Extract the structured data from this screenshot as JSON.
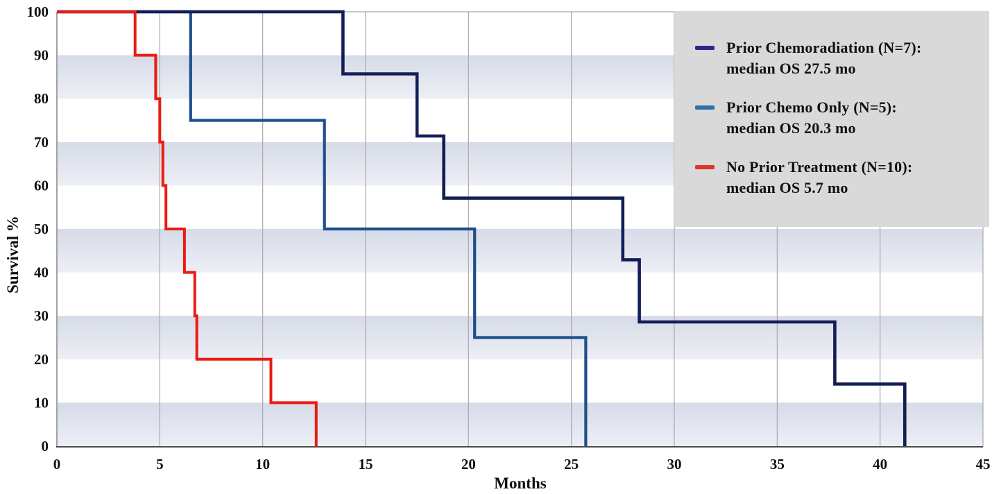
{
  "chart_data": {
    "type": "line",
    "subtype": "kaplan_meier_step",
    "title": "",
    "xlabel": "Months",
    "ylabel": "Survival %",
    "xlim": [
      0,
      45
    ],
    "ylim": [
      0,
      100
    ],
    "x_ticks": [
      0,
      5,
      10,
      15,
      20,
      25,
      30,
      35,
      40,
      45
    ],
    "y_ticks": [
      0,
      10,
      20,
      30,
      40,
      50,
      60,
      70,
      80,
      90,
      100
    ],
    "grid": {
      "vertical_gridlines_at_months": [
        5,
        10,
        15,
        20,
        25,
        30,
        35,
        40,
        45
      ],
      "shaded_horizontal_bands_pct": [
        [
          0,
          10
        ],
        [
          20,
          30
        ],
        [
          40,
          50
        ],
        [
          60,
          70
        ],
        [
          80,
          90
        ]
      ]
    },
    "legend_position": "top-right",
    "series": [
      {
        "name": "Prior Chemoradiation",
        "n": 7,
        "median_os_mo": 27.5,
        "legend_line1": "Prior Chemoradiation (N=7):",
        "legend_line2": "median OS 27.5 mo",
        "color": "#131e55",
        "swatch_color": "#28288f",
        "points": [
          [
            0,
            100
          ],
          [
            13.9,
            100
          ],
          [
            13.9,
            85.7
          ],
          [
            17.5,
            85.7
          ],
          [
            17.5,
            71.4
          ],
          [
            18.8,
            71.4
          ],
          [
            18.8,
            57.1
          ],
          [
            27.5,
            57.1
          ],
          [
            27.5,
            42.9
          ],
          [
            28.3,
            42.9
          ],
          [
            28.3,
            28.6
          ],
          [
            37.8,
            28.6
          ],
          [
            37.8,
            14.3
          ],
          [
            41.2,
            14.3
          ],
          [
            41.2,
            0
          ]
        ]
      },
      {
        "name": "Prior Chemo Only",
        "n": 5,
        "median_os_mo": 20.3,
        "legend_line1": "Prior Chemo Only (N=5):",
        "legend_line2": "median OS 20.3 mo",
        "color": "#1d4f8c",
        "swatch_color": "#2e71a8",
        "points": [
          [
            0,
            100
          ],
          [
            6.5,
            100
          ],
          [
            6.5,
            75
          ],
          [
            13.0,
            75
          ],
          [
            13.0,
            50
          ],
          [
            20.3,
            50
          ],
          [
            20.3,
            25
          ],
          [
            25.7,
            25
          ],
          [
            25.7,
            0
          ]
        ]
      },
      {
        "name": "No Prior Treatment",
        "n": 10,
        "median_os_mo": 5.7,
        "legend_line1": "No Prior Treatment (N=10):",
        "legend_line2": "median OS 5.7 mo",
        "color": "#ea1c12",
        "swatch_color": "#e23126",
        "points": [
          [
            0,
            100
          ],
          [
            3.8,
            100
          ],
          [
            3.8,
            90
          ],
          [
            4.8,
            90
          ],
          [
            4.8,
            80
          ],
          [
            5.0,
            80
          ],
          [
            5.0,
            70
          ],
          [
            5.15,
            70
          ],
          [
            5.15,
            60
          ],
          [
            5.3,
            60
          ],
          [
            5.3,
            50
          ],
          [
            6.2,
            50
          ],
          [
            6.2,
            40
          ],
          [
            6.7,
            40
          ],
          [
            6.7,
            30
          ],
          [
            6.8,
            30
          ],
          [
            6.8,
            20
          ],
          [
            10.4,
            20
          ],
          [
            10.4,
            10
          ],
          [
            12.6,
            10
          ],
          [
            12.6,
            0
          ]
        ]
      }
    ],
    "colors": {
      "band_top": "#d6dbe8",
      "band_bottom": "#edeff5",
      "grid": "#a9a9a9",
      "axis_left": "#8a8a8a",
      "axis_bottom": "#4a4a4a",
      "legend_bg": "#d9d9d9",
      "text": "#111111"
    }
  }
}
